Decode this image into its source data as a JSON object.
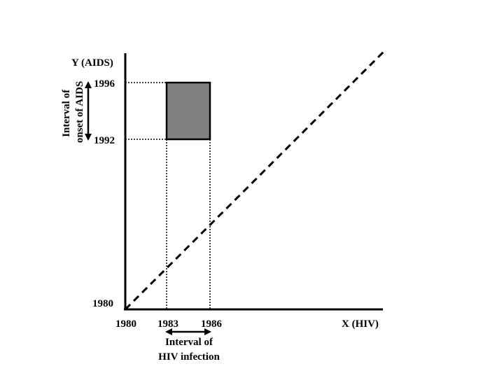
{
  "axes": {
    "y_label": "Y (AIDS)",
    "x_label": "X (HIV)",
    "origin_y_label": "1980",
    "origin_x_label": "1980"
  },
  "x_ticks": [
    "1980",
    "1983",
    "1986"
  ],
  "y_ticks": [
    "1992",
    "1996"
  ],
  "aids_interval_label": [
    "Interval of",
    "onset of AIDS"
  ],
  "hiv_interval_label": [
    "Interval of",
    "HIV infection"
  ],
  "colors": {
    "box_fill": "#808080",
    "line": "#000000"
  }
}
